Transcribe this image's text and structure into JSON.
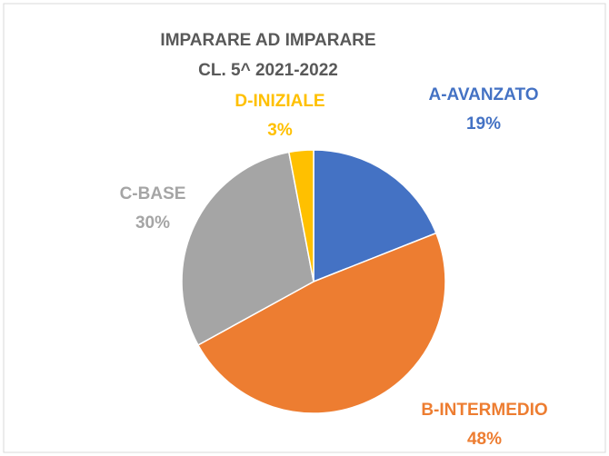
{
  "chart_data": {
    "type": "pie",
    "title": "IMPARARE AD IMPARARE",
    "subtitle": "CL. 5^ 2021-2022",
    "categories": [
      "A-AVANZATO",
      "B-INTERMEDIO",
      "C-BASE",
      "D-INIZIALE"
    ],
    "values": [
      19,
      48,
      30,
      3
    ],
    "value_labels": [
      "19%",
      "48%",
      "30%",
      "3%"
    ],
    "colors": [
      "#4472c4",
      "#ed7d31",
      "#a5a5a5",
      "#ffc000"
    ]
  }
}
